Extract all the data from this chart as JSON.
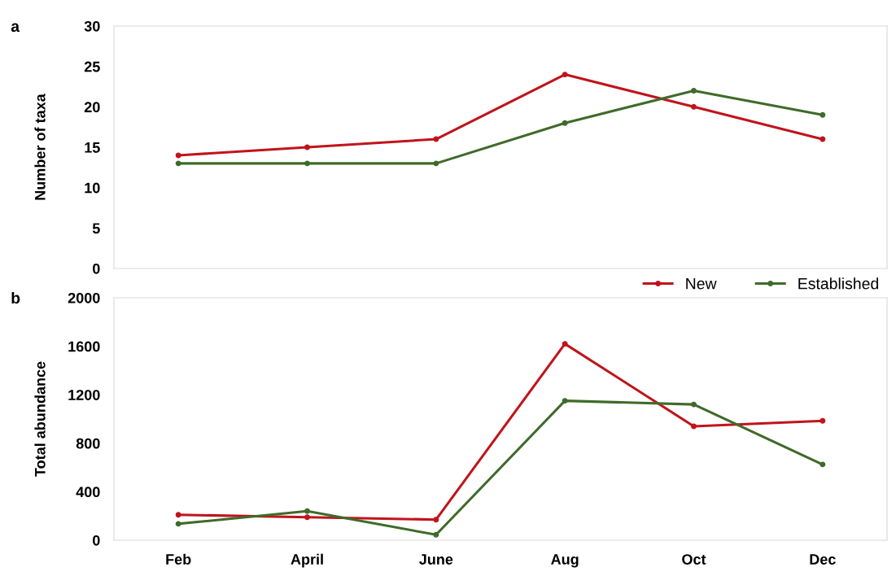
{
  "chart_data": [
    {
      "type": "line",
      "ylabel": "Number of taxa",
      "annotations": [
        "a"
      ],
      "categories": [
        null,
        null,
        null,
        null,
        null,
        null
      ],
      "tick_labels": "y",
      "ylim": [
        0,
        30
      ],
      "yticks": [
        0,
        5,
        10,
        15,
        20,
        25,
        30
      ],
      "marker": "circle",
      "grid": false,
      "legend": "bottom right",
      "series": [
        {
          "name": "New",
          "color": "#c0141c",
          "values": [
            14,
            15,
            16,
            24,
            20,
            16
          ]
        },
        {
          "name": "Established",
          "color": "#3f6b2a",
          "values": [
            13,
            13,
            13,
            18,
            22,
            19
          ]
        }
      ]
    },
    {
      "type": "line",
      "ylabel": "Total abundance",
      "annotations": [
        "b"
      ],
      "categories": [
        "Feb",
        "April",
        "June",
        "Aug",
        "Oct",
        "Dec"
      ],
      "ylim": [
        0,
        2000
      ],
      "yticks": [
        0,
        400,
        800,
        1200,
        1600,
        2000
      ],
      "marker": "circle",
      "grid": false,
      "series": [
        {
          "color": "#c0141c",
          "values": [
            210,
            190,
            170,
            1620,
            940,
            985
          ]
        },
        {
          "color": "#3f6b2a",
          "values": [
            135,
            240,
            45,
            1150,
            1120,
            625
          ]
        }
      ]
    }
  ]
}
